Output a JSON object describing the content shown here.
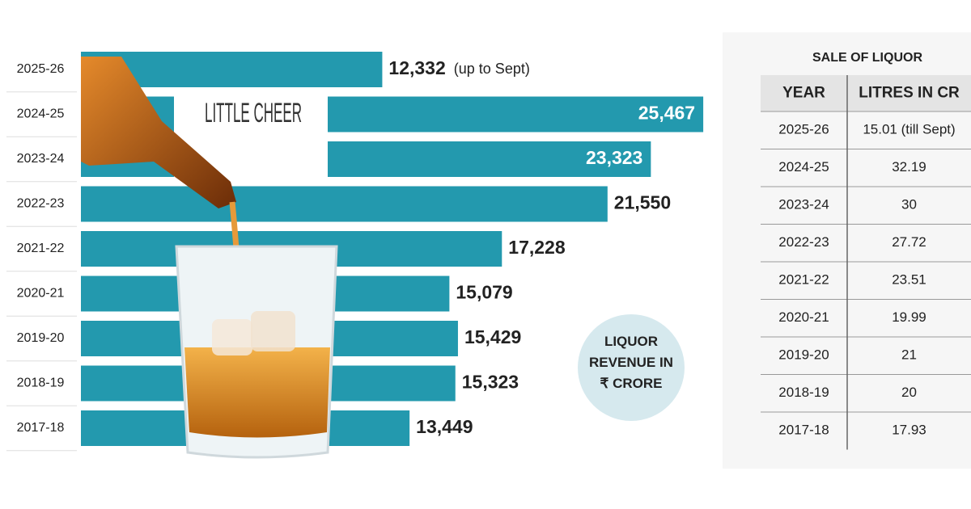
{
  "chart_data": {
    "type": "bar",
    "orientation": "horizontal",
    "title": "LITTLE CHEER",
    "subtitle": "LIQUOR REVENUE IN ₹ CRORE",
    "annotation": "(up to Sept)",
    "categories": [
      "2025-26",
      "2024-25",
      "2023-24",
      "2022-23",
      "2021-22",
      "2020-21",
      "2019-20",
      "2018-19",
      "2017-18"
    ],
    "values": [
      12332,
      25467,
      23323,
      21550,
      17228,
      15079,
      15429,
      15323,
      13449
    ],
    "value_labels": [
      "12,332",
      "25,467",
      "23,323",
      "21,550",
      "17,228",
      "15,079",
      "15,429",
      "15,323",
      "13,449"
    ],
    "color": "#2399ae"
  },
  "table": {
    "title": "SALE OF LIQUOR",
    "headers": [
      "YEAR",
      "LITRES IN CR"
    ],
    "rows": [
      [
        "2025-26",
        "15.01 (till Sept)"
      ],
      [
        "2024-25",
        "32.19"
      ],
      [
        "2023-24",
        "30"
      ],
      [
        "2022-23",
        "27.72"
      ],
      [
        "2021-22",
        "23.51"
      ],
      [
        "2020-21",
        "19.99"
      ],
      [
        "2019-20",
        "21"
      ],
      [
        "2018-19",
        "20"
      ],
      [
        "2017-18",
        "17.93"
      ]
    ]
  }
}
